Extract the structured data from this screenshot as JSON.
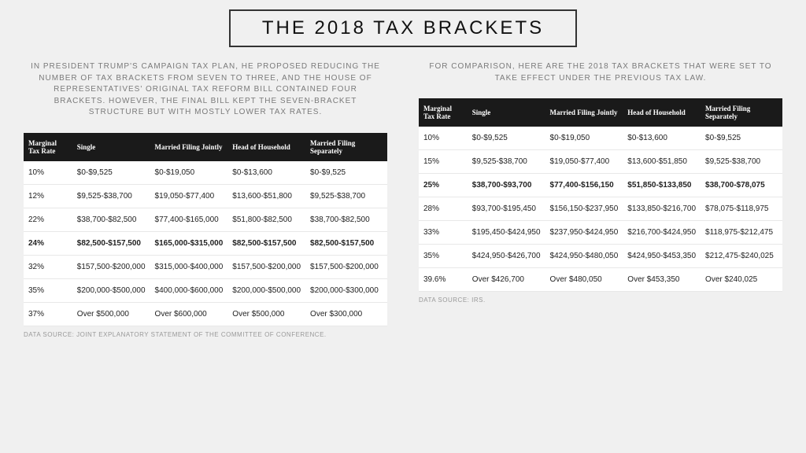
{
  "title": "THE 2018 TAX BRACKETS",
  "left": {
    "intro": "IN PRESIDENT TRUMP'S CAMPAIGN TAX PLAN, HE PROPOSED REDUCING THE NUMBER OF TAX BRACKETS FROM SEVEN TO THREE, AND THE HOUSE OF REPRESENTATIVES' ORIGINAL TAX REFORM BILL CONTAINED FOUR BRACKETS. HOWEVER, THE FINAL BILL KEPT THE SEVEN-BRACKET STRUCTURE BUT WITH MOSTLY LOWER TAX RATES.",
    "columns": [
      "Marginal Tax Rate",
      "Single",
      "Married Filing Jointly",
      "Head of Household",
      "Married Filing Separately"
    ],
    "rows": [
      {
        "cells": [
          "10%",
          "$0-$9,525",
          "$0-$19,050",
          "$0-$13,600",
          "$0-$9,525"
        ],
        "highlight": false
      },
      {
        "cells": [
          "12%",
          "$9,525-$38,700",
          "$19,050-$77,400",
          "$13,600-$51,800",
          "$9,525-$38,700"
        ],
        "highlight": false
      },
      {
        "cells": [
          "22%",
          "$38,700-$82,500",
          "$77,400-$165,000",
          "$51,800-$82,500",
          "$38,700-$82,500"
        ],
        "highlight": false
      },
      {
        "cells": [
          "24%",
          "$82,500-$157,500",
          "$165,000-$315,000",
          "$82,500-$157,500",
          "$82,500-$157,500"
        ],
        "highlight": true
      },
      {
        "cells": [
          "32%",
          "$157,500-$200,000",
          "$315,000-$400,000",
          "$157,500-$200,000",
          "$157,500-$200,000"
        ],
        "highlight": false
      },
      {
        "cells": [
          "35%",
          "$200,000-$500,000",
          "$400,000-$600,000",
          "$200,000-$500,000",
          "$200,000-$300,000"
        ],
        "highlight": false
      },
      {
        "cells": [
          "37%",
          "Over $500,000",
          "Over $600,000",
          "Over $500,000",
          "Over $300,000"
        ],
        "highlight": false
      }
    ],
    "source": "DATA SOURCE: JOINT EXPLANATORY STATEMENT OF THE COMMITTEE OF CONFERENCE."
  },
  "right": {
    "intro": "FOR COMPARISON, HERE ARE THE 2018 TAX BRACKETS THAT WERE SET TO TAKE EFFECT UNDER THE PREVIOUS TAX LAW.",
    "columns": [
      "Marginal Tax Rate",
      "Single",
      "Married Filing Jointly",
      "Head of Household",
      "Married Filing Separately"
    ],
    "rows": [
      {
        "cells": [
          "10%",
          "$0-$9,525",
          "$0-$19,050",
          "$0-$13,600",
          "$0-$9,525"
        ],
        "highlight": false
      },
      {
        "cells": [
          "15%",
          "$9,525-$38,700",
          "$19,050-$77,400",
          "$13,600-$51,850",
          "$9,525-$38,700"
        ],
        "highlight": false
      },
      {
        "cells": [
          "25%",
          "$38,700-$93,700",
          "$77,400-$156,150",
          "$51,850-$133,850",
          "$38,700-$78,075"
        ],
        "highlight": true
      },
      {
        "cells": [
          "28%",
          "$93,700-$195,450",
          "$156,150-$237,950",
          "$133,850-$216,700",
          "$78,075-$118,975"
        ],
        "highlight": false
      },
      {
        "cells": [
          "33%",
          "$195,450-$424,950",
          "$237,950-$424,950",
          "$216,700-$424,950",
          "$118,975-$212,475"
        ],
        "highlight": false
      },
      {
        "cells": [
          "35%",
          "$424,950-$426,700",
          "$424,950-$480,050",
          "$424,950-$453,350",
          "$212,475-$240,025"
        ],
        "highlight": false
      },
      {
        "cells": [
          "39.6%",
          "Over $426,700",
          "Over $480,050",
          "Over $453,350",
          "Over $240,025"
        ],
        "highlight": false
      }
    ],
    "source": "DATA SOURCE: IRS."
  },
  "style": {
    "background": "#f0f0f0",
    "title_border": "#333333",
    "header_bg": "#1a1a1a",
    "header_fg": "#ffffff",
    "row_border": "#e8e8e8",
    "intro_color": "#7a7a7a",
    "source_color": "#999999"
  }
}
